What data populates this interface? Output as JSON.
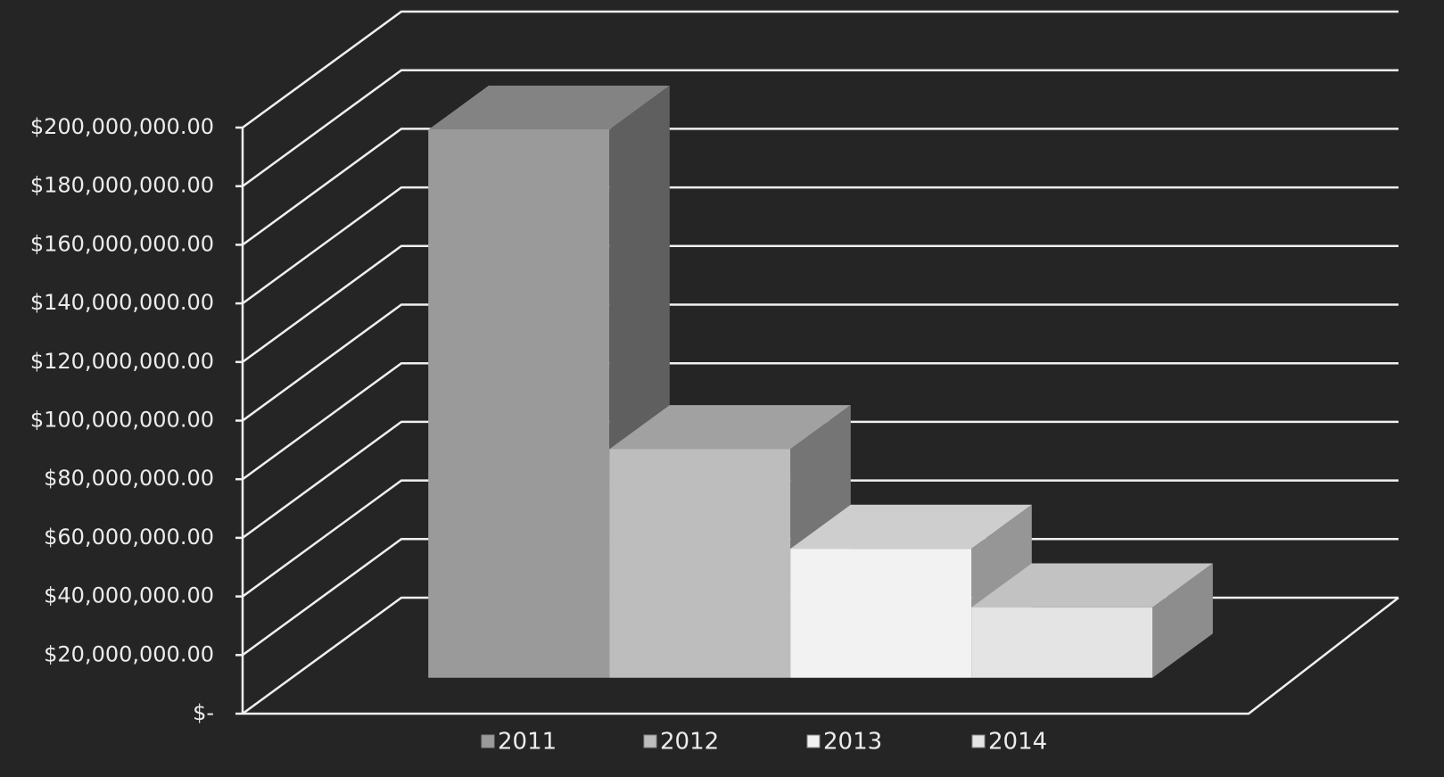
{
  "chart_data": {
    "type": "bar3d",
    "categories": [
      "2011",
      "2012",
      "2013",
      "2014"
    ],
    "values": [
      187000000,
      78000000,
      44000000,
      24000000
    ],
    "colors": [
      "#9a9a9a",
      "#bdbdbd",
      "#f2f2f2",
      "#e4e4e4"
    ],
    "ylim": [
      0,
      200000000
    ],
    "yticks": [
      {
        "value": 0,
        "label": "$-"
      },
      {
        "value": 20000000,
        "label": "$20,000,000.00"
      },
      {
        "value": 40000000,
        "label": "$40,000,000.00"
      },
      {
        "value": 60000000,
        "label": "$60,000,000.00"
      },
      {
        "value": 80000000,
        "label": "$80,000,000.00"
      },
      {
        "value": 100000000,
        "label": "$100,000,000.00"
      },
      {
        "value": 120000000,
        "label": "$120,000,000.00"
      },
      {
        "value": 140000000,
        "label": "$140,000,000.00"
      },
      {
        "value": 160000000,
        "label": "$160,000,000.00"
      },
      {
        "value": 180000000,
        "label": "$180,000,000.00"
      },
      {
        "value": 200000000,
        "label": "$200,000,000.00"
      }
    ],
    "grid": true,
    "legend": "bottom"
  }
}
